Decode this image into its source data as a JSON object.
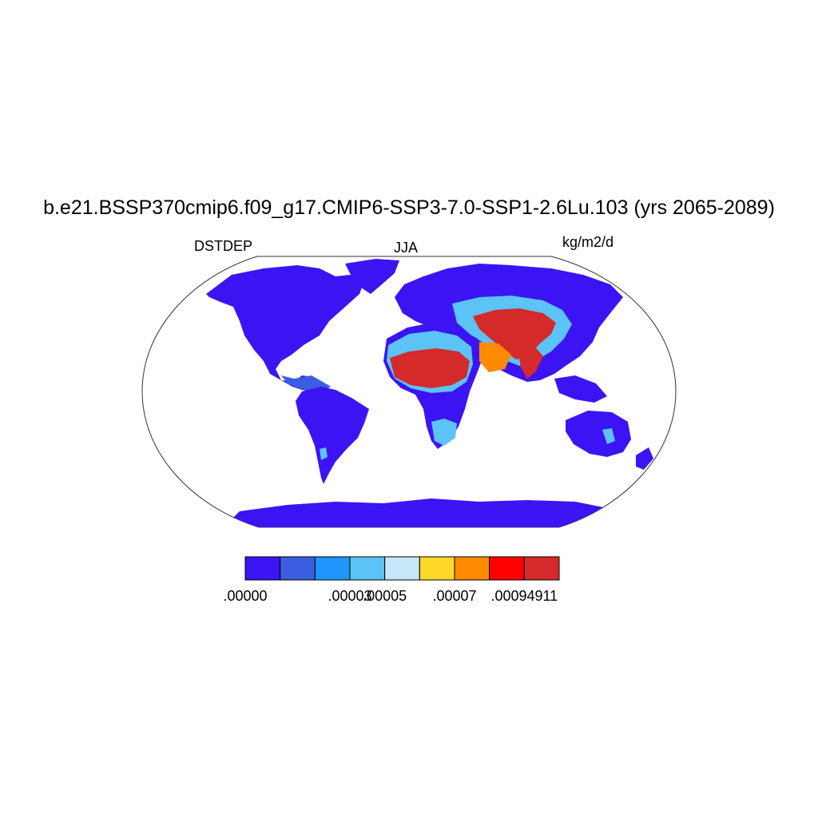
{
  "title": "b.e21.BSSP370cmip6.f09_g17.CMIP6-SSP3-7.0-SSP1-2.6Lu.103 (yrs 2065-2089)",
  "left_label": "DSTDEP",
  "center_label": "JJA",
  "right_label": "kg/m2/d",
  "colorbar": {
    "colors": [
      "#3c14f4",
      "#3b5ee0",
      "#1e96fb",
      "#5bc3f5",
      "#c7e6f8",
      "#fdd829",
      "#fd8a00",
      "#fe0000",
      "#d42a2a"
    ],
    "tick_labels": [
      {
        "text": ".00000",
        "boundary": 0
      },
      {
        "text": ".00003",
        "boundary": 3
      },
      {
        "text": ".00005",
        "boundary": 4
      },
      {
        "text": ".00007",
        "boundary": 6
      },
      {
        "text": ".00094911",
        "boundary": 8
      }
    ]
  },
  "map": {
    "projection": "Robinson",
    "ocean_color": "#ffffff",
    "land_base_color": "#3c14f4"
  }
}
